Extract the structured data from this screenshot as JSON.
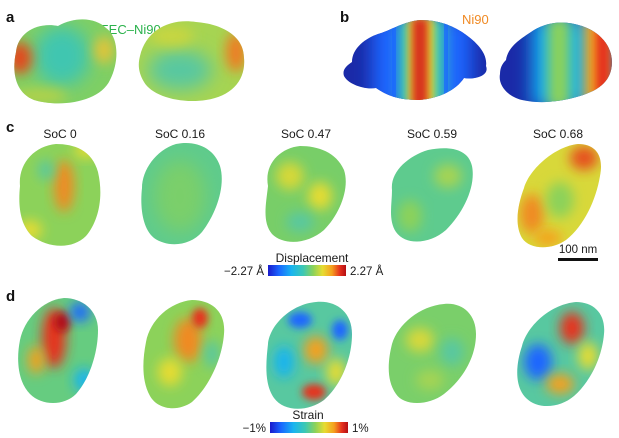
{
  "panels": {
    "a": {
      "letter": "a",
      "sample": "EEC–Ni90",
      "color": "#2bb24c"
    },
    "b": {
      "letter": "b",
      "sample": "Ni90",
      "color": "#f08a24"
    },
    "c": {
      "letter": "c",
      "soc_labels": [
        "SoC 0",
        "SoC 0.16",
        "SoC 0.47",
        "SoC 0.59",
        "SoC 0.68"
      ]
    },
    "d": {
      "letter": "d"
    }
  },
  "displacement_colorbar": {
    "title": "Displacement",
    "min_label": "−2.27 Å",
    "max_label": "2.27 Å"
  },
  "strain_colorbar": {
    "title": "Strain",
    "min_label": "−1%",
    "max_label": "1%"
  },
  "scale_bar": {
    "label": "100 nm"
  },
  "colormap": [
    "#1a1acc",
    "#1a66ff",
    "#19b4f0",
    "#3cc8b4",
    "#8cd25a",
    "#e6dc32",
    "#f5a01e",
    "#e6321e",
    "#b40f14"
  ]
}
